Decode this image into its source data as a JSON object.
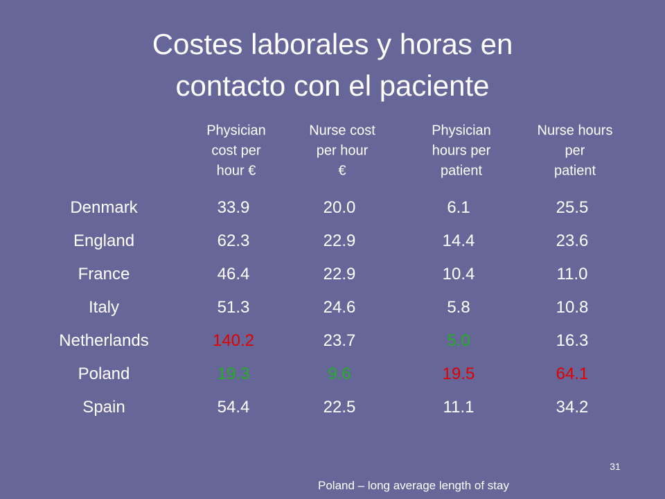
{
  "slide": {
    "title_lines": [
      "Costes laborales y horas en",
      "contacto con el paciente"
    ],
    "table": {
      "headers": [
        [
          "Physician",
          "cost per",
          "hour €"
        ],
        [
          "Nurse cost",
          "per hour",
          "€"
        ],
        [
          "Physician",
          "hours per",
          "patient"
        ],
        [
          "Nurse hours",
          "per",
          "patient"
        ]
      ],
      "rows": [
        [
          "Denmark",
          "33.9",
          "20.0",
          "6.1",
          "25.5"
        ],
        [
          "England",
          "62.3",
          "22.9",
          "14.4",
          "23.6"
        ],
        [
          "France",
          "46.4",
          "22.9",
          "10.4",
          "11.0"
        ],
        [
          "Italy",
          "51.3",
          "24.6",
          "5.8",
          "10.8"
        ],
        [
          "Netherlands",
          "140.2",
          "23.7",
          "5.0",
          "16.3"
        ],
        [
          "Poland",
          "19.3",
          "9.6",
          "19.5",
          "64.1"
        ],
        [
          "Spain",
          "54.4",
          "22.5",
          "11.1",
          "34.2"
        ]
      ]
    },
    "page_number": "31",
    "footnote": "Poland – long average length of stay"
  }
}
